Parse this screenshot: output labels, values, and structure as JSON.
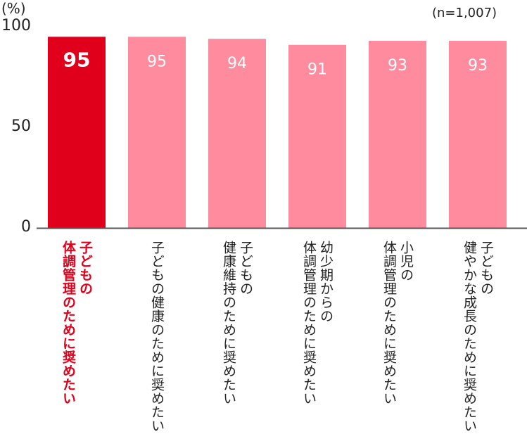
{
  "chart_data": {
    "type": "bar",
    "unit_label": "(%)",
    "sample_label": "(n=1,007)",
    "ylim": [
      0,
      100
    ],
    "yticks": [
      0,
      50,
      100
    ],
    "grid": false,
    "highlight_index": 0,
    "colors": {
      "highlight": "#e0001b",
      "bar": "#ff8c9e",
      "axis": "#555555",
      "highlight_text": "#e0001b"
    },
    "categories": [
      [
        "子どもの",
        "体調管理のために奨めたい"
      ],
      [
        "子どもの健康のために奨めたい"
      ],
      [
        "子どもの",
        "健康維持のために奨めたい"
      ],
      [
        "幼少期からの",
        "体調管理のために奨めたい"
      ],
      [
        "小児の",
        "体調管理のために奨めたい"
      ],
      [
        "子どもの",
        "健やかな成長のために奨めたい"
      ]
    ],
    "values": [
      95,
      95,
      94,
      91,
      93,
      93
    ]
  }
}
